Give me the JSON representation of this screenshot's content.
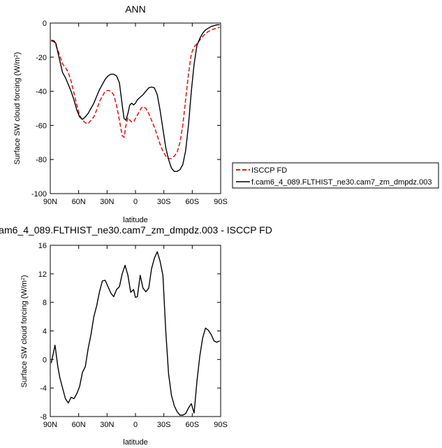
{
  "chart_data": [
    {
      "type": "line",
      "title": "ANN",
      "ylabel": "Surface SW cloud forcing (W/m",
      "ylabel_sup": "2",
      "ylabel_close": ")",
      "xlabel": "latitude",
      "xlim": [
        90,
        -90
      ],
      "ylim": [
        -100,
        0
      ],
      "xticks": [
        90,
        60,
        30,
        0,
        -30,
        -60,
        -90
      ],
      "xtick_labels": [
        "90N",
        "60N",
        "30N",
        "0",
        "30S",
        "60S",
        "90S"
      ],
      "yticks": [
        0,
        -20,
        -40,
        -60,
        -80,
        -100
      ],
      "ytick_labels": [
        "0",
        "-20",
        "-40",
        "-60",
        "-80",
        "-100"
      ],
      "legend_position": "right",
      "series": [
        {
          "name": "ISCCP FD",
          "color": "#e01b1b",
          "dash": "dashed",
          "x": [
            89,
            86,
            84,
            82,
            80,
            77,
            74,
            71,
            68,
            65,
            62,
            59,
            56,
            53,
            50,
            47,
            44,
            41,
            38,
            35,
            32,
            29,
            26,
            23,
            20,
            17,
            14,
            12,
            10,
            8,
            6,
            4,
            2,
            0,
            -2,
            -4,
            -6,
            -8,
            -11,
            -14,
            -17,
            -20,
            -23,
            -26,
            -29,
            -32,
            -35,
            -38,
            -41,
            -44,
            -47,
            -50,
            -53,
            -56,
            -59,
            -62,
            -65,
            -68,
            -71,
            -74,
            -77,
            -80,
            -83,
            -86,
            -89
          ],
          "y": [
            -10.5,
            -11,
            -13,
            -16,
            -19,
            -24,
            -26,
            -29,
            -34,
            -41,
            -48,
            -54,
            -57,
            -58.5,
            -59,
            -57,
            -55,
            -51,
            -46,
            -43,
            -40,
            -39.5,
            -40,
            -42,
            -48,
            -57,
            -66,
            -67,
            -60,
            -55.5,
            -57,
            -58,
            -58,
            -56,
            -54,
            -52,
            -50,
            -49,
            -50,
            -53,
            -57,
            -61,
            -66,
            -71,
            -75,
            -78,
            -79.5,
            -79.5,
            -78,
            -76,
            -70,
            -60,
            -45,
            -30,
            -18,
            -14,
            -12,
            -10,
            -8,
            -6,
            -5,
            -4,
            -3.5,
            -3,
            -2.5
          ]
        },
        {
          "name": "f.cam6_4_089.FLTHIST_ne30.cam7_zm_dmpdz.003",
          "color": "#000000",
          "dash": "solid",
          "x": [
            89,
            86,
            84,
            82,
            80,
            77,
            74,
            71,
            68,
            65,
            62,
            59,
            56,
            53,
            50,
            47,
            44,
            41,
            38,
            35,
            32,
            29,
            26,
            23,
            20,
            17,
            14,
            12,
            10,
            8,
            6,
            4,
            2,
            0,
            -2,
            -4,
            -6,
            -8,
            -11,
            -14,
            -17,
            -20,
            -23,
            -26,
            -29,
            -32,
            -35,
            -38,
            -41,
            -44,
            -47,
            -50,
            -53,
            -56,
            -59,
            -62,
            -65,
            -68,
            -71,
            -74,
            -77,
            -80,
            -83,
            -86,
            -89
          ],
          "y": [
            -10,
            -10.5,
            -12,
            -17,
            -22,
            -29,
            -32,
            -36,
            -40,
            -45,
            -51,
            -55,
            -56.5,
            -55,
            -53,
            -50,
            -47,
            -43,
            -39,
            -36,
            -33,
            -31,
            -30,
            -30,
            -31,
            -35,
            -48,
            -56,
            -57,
            -53,
            -48,
            -47,
            -48,
            -47,
            -45,
            -44,
            -43,
            -42,
            -40,
            -38,
            -37.5,
            -38,
            -42,
            -51,
            -62,
            -73,
            -80,
            -85,
            -87,
            -87,
            -86,
            -83,
            -75,
            -60,
            -40,
            -24,
            -13,
            -9,
            -6,
            -4,
            -3,
            -2,
            -1.5,
            -1,
            -1
          ]
        }
      ]
    },
    {
      "type": "line",
      "title": "am6_4_089.FLTHIST_ne30.cam7_zm_dmpdz.003 - ISCCP FD",
      "ylabel": "Surface SW cloud forcing (W/m",
      "ylabel_sup": "2",
      "ylabel_close": ")",
      "xlabel": "latitude",
      "xlim": [
        90,
        -90
      ],
      "ylim": [
        -8,
        16
      ],
      "xticks": [
        90,
        60,
        30,
        0,
        -30,
        -60,
        -90
      ],
      "xtick_labels": [
        "90N",
        "60N",
        "30N",
        "0",
        "30S",
        "60S",
        "90S"
      ],
      "yticks": [
        16,
        12,
        8,
        4,
        0,
        -4,
        -8
      ],
      "ytick_labels": [
        "16",
        "12",
        "8",
        "4",
        "0",
        "-4",
        "-8"
      ],
      "series": [
        {
          "color": "#000000",
          "dash": "solid",
          "x": [
            89,
            85,
            82,
            80,
            77,
            74,
            71,
            68,
            65,
            62,
            59,
            56,
            53,
            50,
            47,
            44,
            41,
            38,
            35,
            32,
            29,
            26,
            23,
            20,
            17,
            14,
            11,
            8,
            5,
            2,
            0,
            -2,
            -5,
            -8,
            -11,
            -14,
            -17,
            -20,
            -23,
            -26,
            -29,
            -32,
            -35,
            -38,
            -41,
            -44,
            -47,
            -50,
            -53,
            -56,
            -59,
            -62,
            -65,
            -68,
            -71,
            -74,
            -77,
            -80,
            -83,
            -86,
            -89
          ],
          "y": [
            -0.5,
            2,
            -1,
            -2.5,
            -4,
            -5.5,
            -6.1,
            -5.3,
            -5.5,
            -4.8,
            -3.8,
            -1.8,
            -1,
            1.5,
            3.5,
            6,
            7.5,
            9.5,
            11,
            11.1,
            10.2,
            9.3,
            8.8,
            9.8,
            10.2,
            12,
            13.2,
            11.8,
            9.4,
            9.8,
            8.7,
            8.8,
            11.8,
            10,
            9.5,
            10,
            12.7,
            14.2,
            15.1,
            13.8,
            11.8,
            4,
            -2,
            -5,
            -6.5,
            -7.3,
            -7.8,
            -7.8,
            -7.6,
            -6.8,
            -6.2,
            -7.5,
            -3,
            0.5,
            3,
            4.4,
            4.1,
            3.5,
            2.6,
            2.4,
            2.6
          ]
        }
      ]
    }
  ]
}
